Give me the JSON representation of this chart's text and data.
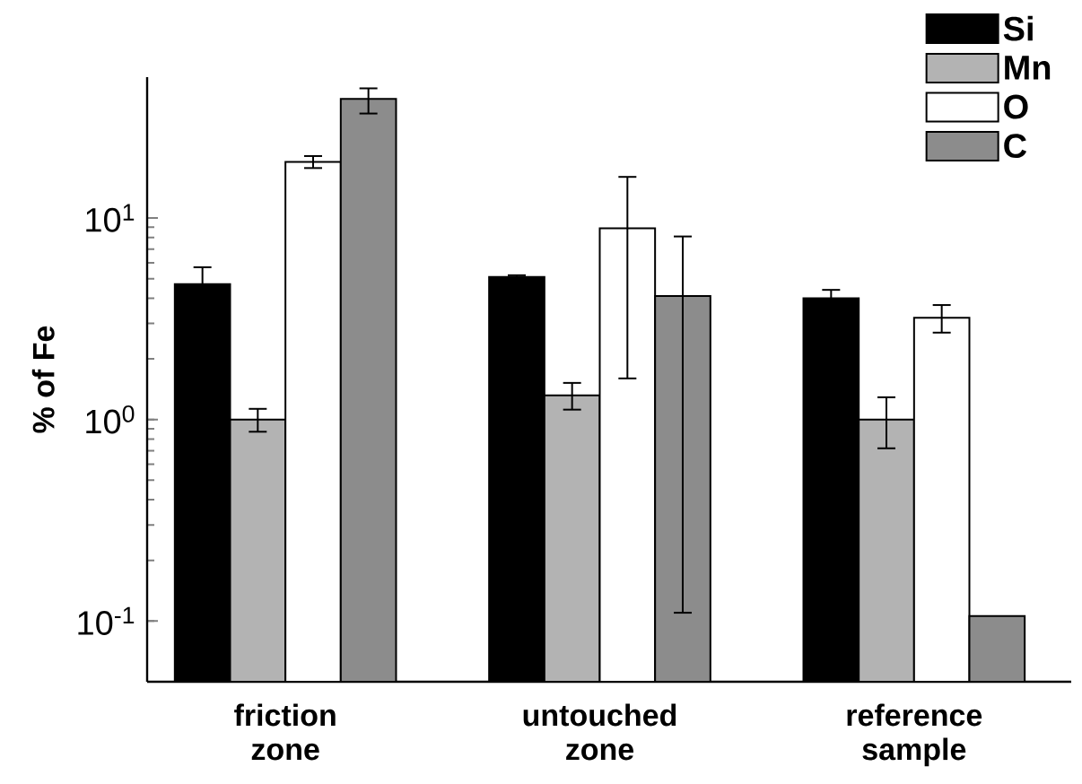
{
  "chart_data": {
    "type": "bar",
    "ylabel": "% of Fe",
    "categories": [
      "friction zone",
      "untouched zone",
      "reference sample"
    ],
    "series": [
      {
        "name": "Si",
        "color": "#000000",
        "values": [
          4.7,
          5.1,
          4.0
        ],
        "errors": [
          1.0,
          0.1,
          0.4
        ]
      },
      {
        "name": "Mn",
        "color": "#b3b3b3",
        "values": [
          1.0,
          1.32,
          1.0
        ],
        "errors": [
          0.13,
          0.2,
          [
            0.72,
            1.29
          ]
        ]
      },
      {
        "name": "O",
        "color": "#ffffff",
        "values": [
          19,
          8.9,
          3.2
        ],
        "errors": [
          1.3,
          [
            1.6,
            16
          ],
          0.5
        ]
      },
      {
        "name": "C",
        "color": "#8c8c8c",
        "values": [
          39,
          4.1,
          0.106
        ],
        "errors": [
          [
            33,
            44
          ],
          [
            0.11,
            8.1
          ],
          null
        ]
      }
    ],
    "log": "y",
    "ylim": [
      0.05,
      50
    ],
    "yticks": [
      {
        "value": 0.1,
        "label": "10$^{-1}$"
      },
      {
        "value": 1,
        "label": "10$^{0}$"
      },
      {
        "value": 10,
        "label": "10$^{1}$"
      }
    ],
    "legend": "top right"
  }
}
